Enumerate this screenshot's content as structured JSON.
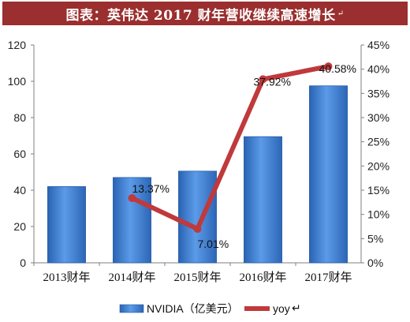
{
  "header": {
    "title": "图表：英伟达 2017 财年营收继续高速增长",
    "title_mark": "↵"
  },
  "chart_data": {
    "type": "bar",
    "categories": [
      "2013财年",
      "2014财年",
      "2015财年",
      "2016财年",
      "2017财年"
    ],
    "series": [
      {
        "name": "NVIDIA（亿美元）",
        "type": "bar",
        "axis": "left",
        "values": [
          42,
          47,
          50.5,
          69.5,
          97.5
        ],
        "color": "#3f7fd0"
      },
      {
        "name": "yoy",
        "type": "line",
        "axis": "right",
        "values": [
          null,
          0.1337,
          0.0701,
          0.3792,
          0.4058
        ],
        "color": "#c0393b",
        "labels": [
          "",
          "13.37%",
          "7.01%",
          "37.92%",
          "40.58%"
        ]
      }
    ],
    "y_left": {
      "ylim": [
        0,
        120
      ],
      "ticks": [
        "0",
        "20",
        "40",
        "60",
        "80",
        "100",
        "120"
      ]
    },
    "y_right": {
      "ylim": [
        0,
        0.45
      ],
      "ticks": [
        "0%",
        "5%",
        "10%",
        "15%",
        "20%",
        "25%",
        "30%",
        "35%",
        "40%",
        "45%"
      ]
    },
    "legend_position": "bottom",
    "legend_mark": "↵",
    "grid": false
  }
}
